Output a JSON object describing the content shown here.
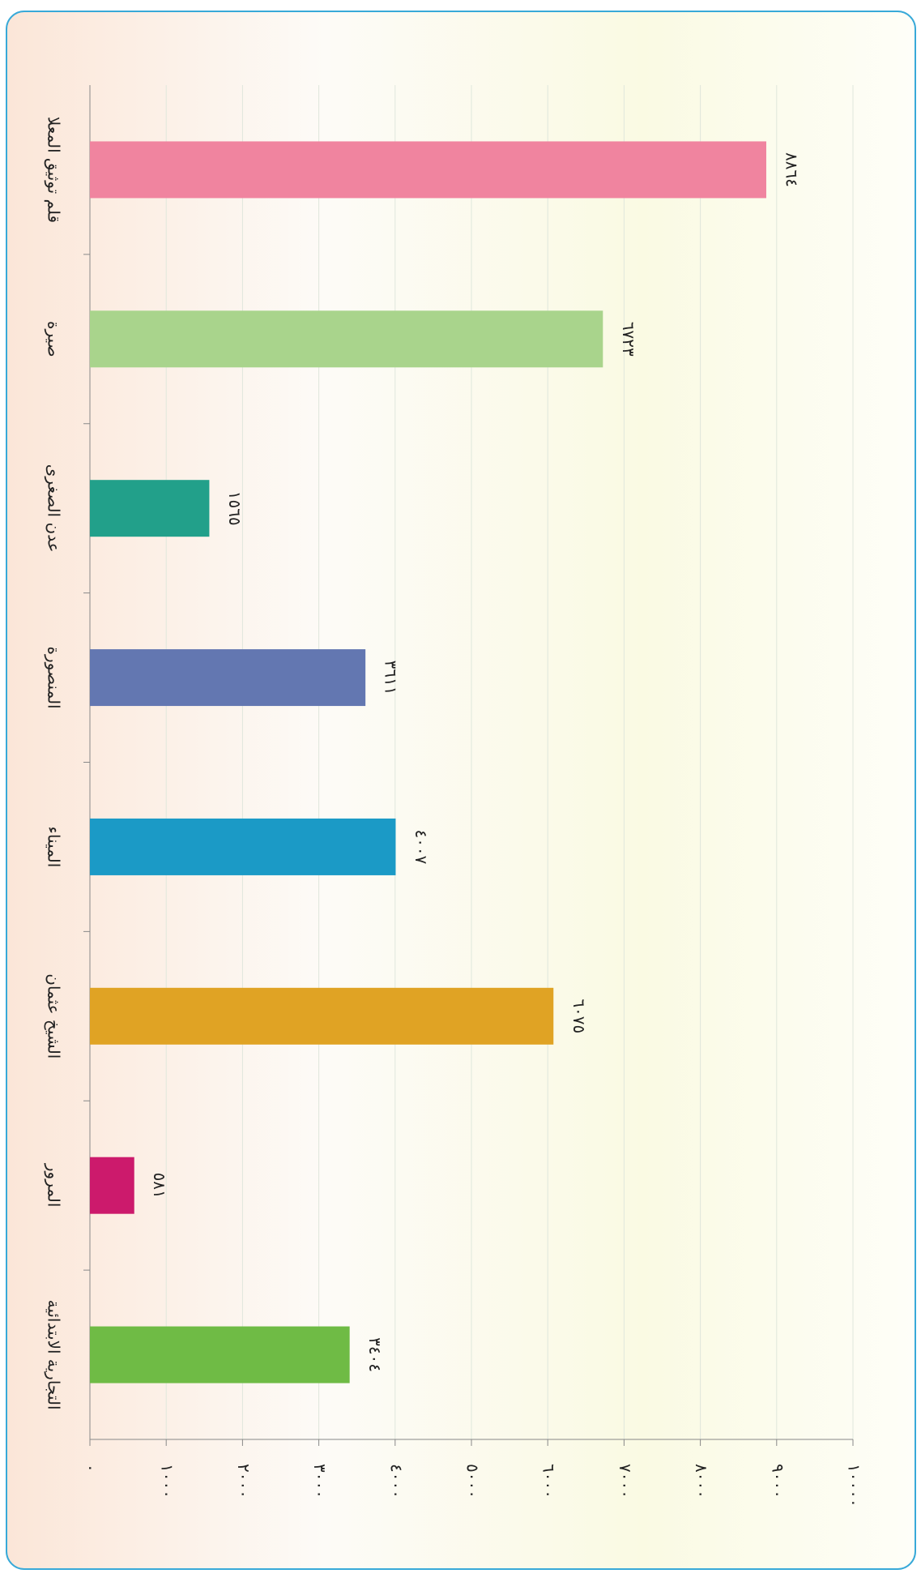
{
  "chart_data": {
    "type": "bar",
    "orientation": "horizontal",
    "categories": [
      "قلم توثيق المعلا",
      "صيرة",
      "عدن الصغرى",
      "المنصورة",
      "الميناء",
      "الشيخ عثمان",
      "المرور",
      "التجارية الابتدائية"
    ],
    "values": [
      8864,
      6723,
      1565,
      3611,
      4007,
      6075,
      581,
      3404
    ],
    "value_labels": [
      "٨٨٦٤",
      "٦٧٢٣",
      "١٥٦٥",
      "٣٦١١",
      "٤٠٠٧",
      "٦٠٧٥",
      "٥٨١",
      "٣٤٠٤"
    ],
    "colors": [
      "#f0849f",
      "#a9d48c",
      "#22a08a",
      "#6377b1",
      "#1b9ac6",
      "#e0a324",
      "#cc1a6c",
      "#6fbb45"
    ],
    "xlim": [
      0,
      10000
    ],
    "xticks": [
      {
        "value": 0,
        "label": "٠"
      },
      {
        "value": 1000,
        "label": "١٠٠٠"
      },
      {
        "value": 2000,
        "label": "٢٠٠٠"
      },
      {
        "value": 3000,
        "label": "٣٠٠٠"
      },
      {
        "value": 4000,
        "label": "٤٠٠٠"
      },
      {
        "value": 5000,
        "label": "٥٠٠٠"
      },
      {
        "value": 6000,
        "label": "٦٠٠٠"
      },
      {
        "value": 7000,
        "label": "٧٠٠٠"
      },
      {
        "value": 8000,
        "label": "٨٠٠٠"
      },
      {
        "value": 9000,
        "label": "٩٠٠٠"
      },
      {
        "value": 10000,
        "label": "١٠٠٠٠"
      }
    ],
    "grid": true
  }
}
